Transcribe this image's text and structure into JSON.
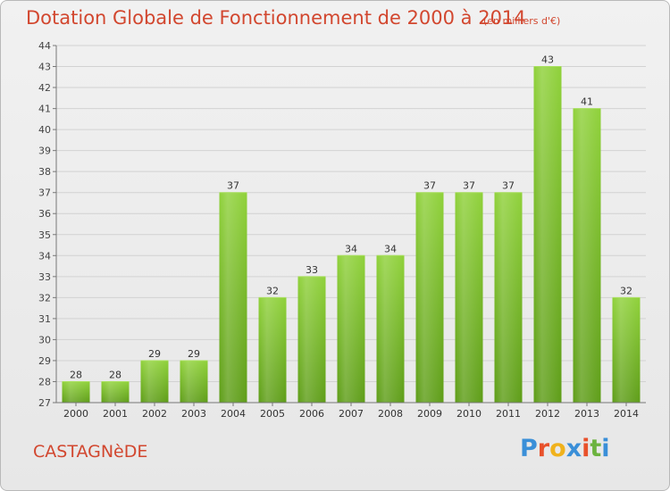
{
  "title": "Dotation Globale de Fonctionnement de 2000 à 2014",
  "unit_note": "(en milliers d'€)",
  "commune": "CASTAGNèDE",
  "logo": {
    "text": "Proxiti",
    "colors": [
      "#3a8fd8",
      "#e8512b",
      "#f0b21c",
      "#3a8fd8",
      "#e8512b",
      "#6cb33f",
      "#3a8fd8"
    ]
  },
  "colors": {
    "bar": "#7fc12b",
    "bar_dark": "#5f9e1c",
    "text_accent": "#d2472f"
  },
  "chart_data": {
    "type": "bar",
    "categories": [
      "2000",
      "2001",
      "2002",
      "2003",
      "2004",
      "2005",
      "2006",
      "2007",
      "2008",
      "2009",
      "2010",
      "2011",
      "2012",
      "2013",
      "2014"
    ],
    "values": [
      28,
      28,
      29,
      29,
      37,
      32,
      33,
      34,
      34,
      37,
      37,
      37,
      43,
      41,
      32
    ],
    "ylim": [
      27,
      44
    ],
    "yticks": [
      27,
      28,
      29,
      30,
      31,
      32,
      33,
      34,
      35,
      36,
      37,
      38,
      39,
      40,
      41,
      42,
      43,
      44
    ],
    "grid": true,
    "legend": "none",
    "title": "Dotation Globale de Fonctionnement de 2000 à 2014"
  }
}
